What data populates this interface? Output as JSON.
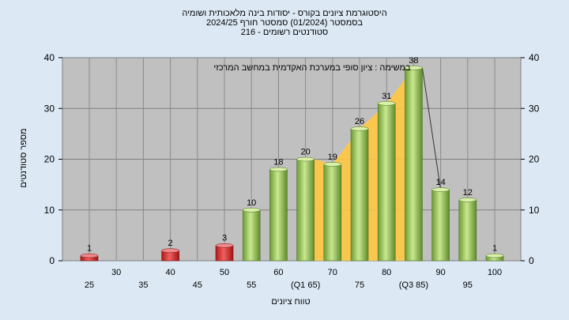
{
  "chart_data": {
    "type": "bar",
    "title_lines": [
      "היסטוגרמת ציונים בקורס - יסודות בינה מלאכותית ושומיה",
      "בסמסטר  (01/2024)  סמסטר חורף  2024/25",
      "סטודנטים רשומים - 216"
    ],
    "annotation": "במשימה : ציון סופי במערכת האקדמית במחשב המרכזי",
    "xlabel": "טווח ציונים",
    "ylabel": "מספר סטודנטים",
    "ylim": [
      0,
      40
    ],
    "yticks": [
      0,
      10,
      20,
      30,
      40
    ],
    "grid": true,
    "categories": [
      "25",
      "30",
      "35",
      "40",
      "45",
      "50",
      "55",
      "60",
      "(Q1 65)",
      "70",
      "75",
      "80",
      "(Q3 85)",
      "90",
      "95",
      "100"
    ],
    "values": [
      1,
      0,
      0,
      2,
      0,
      3,
      10,
      18,
      20,
      19,
      26,
      31,
      38,
      14,
      12,
      1
    ],
    "colors": {
      "plot_bg": "#c0c0c0",
      "page_bg": "#dce9f5",
      "fail_bar": "#d42a2a",
      "pass_bar": "#92c050",
      "iqr_area": "#ffc840"
    }
  }
}
